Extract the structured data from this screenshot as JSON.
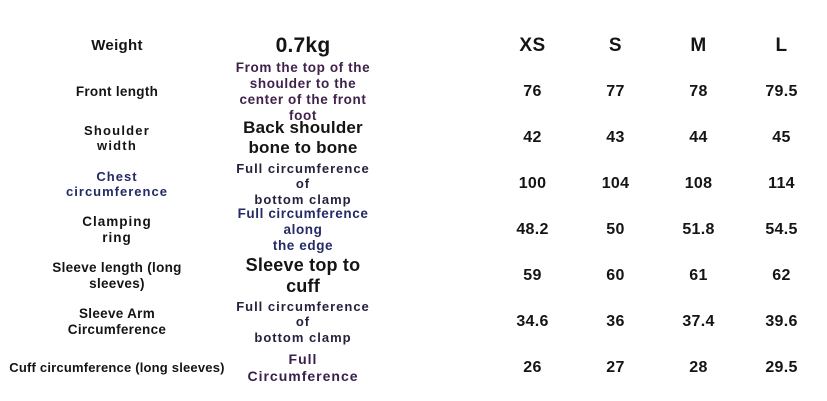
{
  "colors": {
    "background": "#ffffff",
    "ink": "#141414",
    "plum": "#40214a",
    "navy": "#232a66",
    "dark_navy": "#28203d",
    "purple": "#38204e"
  },
  "table": {
    "size_headers": [
      "XS",
      "S",
      "M",
      "L"
    ],
    "rows": [
      {
        "label": "Weight",
        "desc": "0.7kg",
        "values": [
          "XS",
          "S",
          "M",
          "L"
        ]
      },
      {
        "label": "Front length",
        "desc": "From the top of the shoulder to the\ncenter of the front foot",
        "values": [
          "76",
          "77",
          "78",
          "79.5"
        ]
      },
      {
        "label": "Shoulder\nwidth",
        "desc": "Back shoulder bone to bone",
        "values": [
          "42",
          "43",
          "44",
          "45"
        ]
      },
      {
        "label": "Chest\ncircumference",
        "desc": "Full circumference of\nbottom clamp",
        "values": [
          "100",
          "104",
          "108",
          "114"
        ]
      },
      {
        "label": "Clamping\nring",
        "desc": "Full circumference along\nthe edge",
        "values": [
          "48.2",
          "50",
          "51.8",
          "54.5"
        ]
      },
      {
        "label": "Sleeve length (long\nsleeves)",
        "desc": "Sleeve top to cuff",
        "values": [
          "59",
          "60",
          "61",
          "62"
        ]
      },
      {
        "label": "Sleeve Arm\nCircumference",
        "desc": "Full circumference of\nbottom clamp",
        "values": [
          "34.6",
          "36",
          "37.4",
          "39.6"
        ]
      },
      {
        "label": "Cuff circumference (long sleeves)",
        "desc": "Full Circumference",
        "values": [
          "26",
          "27",
          "28",
          "29.5"
        ]
      }
    ]
  },
  "chart_data": {
    "type": "table",
    "columns": [
      "",
      "",
      "XS",
      "S",
      "M",
      "L"
    ],
    "rows": [
      [
        "Weight",
        "0.7kg",
        "",
        "",
        "",
        ""
      ],
      [
        "Front length",
        "From the top of the shoulder to the center of the front foot",
        76,
        77,
        78,
        79.5
      ],
      [
        "Shoulder width",
        "Back shoulder bone to bone",
        42,
        43,
        44,
        45
      ],
      [
        "Chest circumference",
        "Full circumference of bottom clamp",
        100,
        104,
        108,
        114
      ],
      [
        "Clamping ring",
        "Full circumference along the edge",
        48.2,
        50,
        51.8,
        54.5
      ],
      [
        "Sleeve length (long sleeves)",
        "Sleeve top to cuff",
        59,
        60,
        61,
        62
      ],
      [
        "Sleeve Arm Circumference",
        "Full circumference of bottom clamp",
        34.6,
        36,
        37.4,
        39.6
      ],
      [
        "Cuff circumference (long sleeves)",
        "Full Circumference",
        26,
        27,
        28,
        29.5
      ]
    ]
  }
}
